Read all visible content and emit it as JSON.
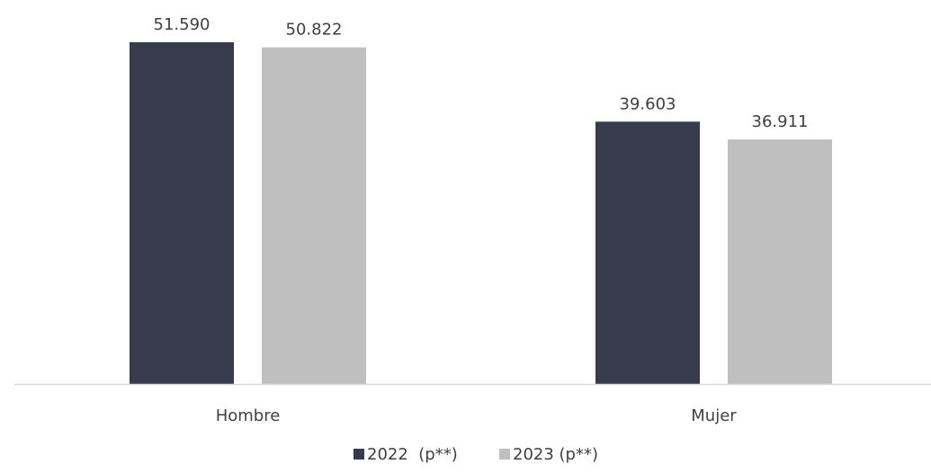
{
  "chart_data": {
    "type": "bar",
    "categories": [
      "Hombre",
      "Mujer"
    ],
    "series": [
      {
        "name": "2022  (p**)",
        "values": [
          51590,
          39603
        ],
        "labels": [
          "51.590",
          "39.603"
        ],
        "color": "#383B4D"
      },
      {
        "name": "2023 (p**)",
        "values": [
          50822,
          36911
        ],
        "labels": [
          "50.822",
          "36.911"
        ],
        "color": "#BFBFBF"
      }
    ],
    "title": "",
    "xlabel": "",
    "ylabel": "",
    "ylim": [
      0,
      52000
    ],
    "grid": false,
    "legend_position": "bottom",
    "axis_color": "#D9D9D9"
  }
}
